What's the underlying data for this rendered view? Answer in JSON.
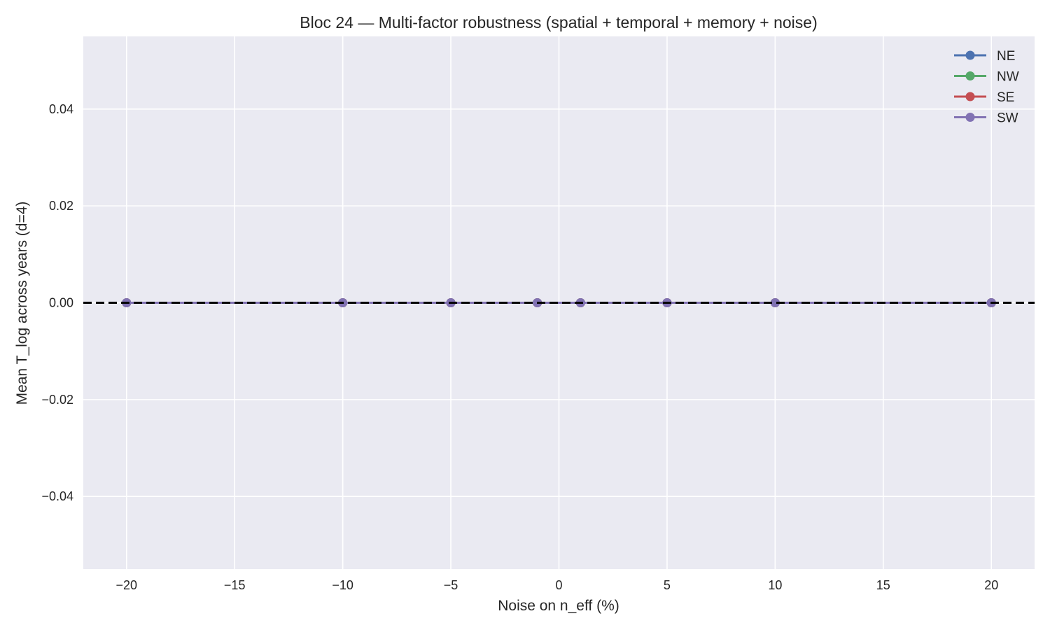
{
  "chart_data": {
    "type": "line",
    "title": "Bloc 24 — Multi-factor robustness (spatial + temporal + memory + noise)",
    "xlabel": "Noise on n_eff (%)",
    "ylabel": "Mean T_log across years (d=4)",
    "x": [
      -20,
      -10,
      -5,
      -1,
      1,
      5,
      10,
      20
    ],
    "xlim": [
      -22,
      22
    ],
    "ylim": [
      -0.055,
      0.055
    ],
    "xticks": [
      -20,
      -15,
      -10,
      -5,
      0,
      5,
      10,
      15,
      20
    ],
    "xtick_labels": [
      "−20",
      "−15",
      "−10",
      "−5",
      "0",
      "5",
      "10",
      "15",
      "20"
    ],
    "yticks": [
      0.04,
      0.02,
      0.0,
      -0.02,
      -0.04
    ],
    "ytick_labels": [
      "0.04",
      "0.02",
      "0.00",
      "−0.02",
      "−0.04"
    ],
    "grid": true,
    "legend_position": "top-right",
    "reference_line": {
      "y": 0,
      "style": "dashed",
      "color": "#000000"
    },
    "series": [
      {
        "name": "NE",
        "color": "#4c72b0",
        "values": [
          0,
          0,
          0,
          0,
          0,
          0,
          0,
          0
        ]
      },
      {
        "name": "NW",
        "color": "#55a868",
        "values": [
          0,
          0,
          0,
          0,
          0,
          0,
          0,
          0
        ]
      },
      {
        "name": "SE",
        "color": "#c44e52",
        "values": [
          0,
          0,
          0,
          0,
          0,
          0,
          0,
          0
        ]
      },
      {
        "name": "SW",
        "color": "#8172b3",
        "values": [
          0,
          0,
          0,
          0,
          0,
          0,
          0,
          0
        ]
      }
    ],
    "colors": {
      "plot_background": "#eaeaf2",
      "grid": "#ffffff"
    }
  }
}
